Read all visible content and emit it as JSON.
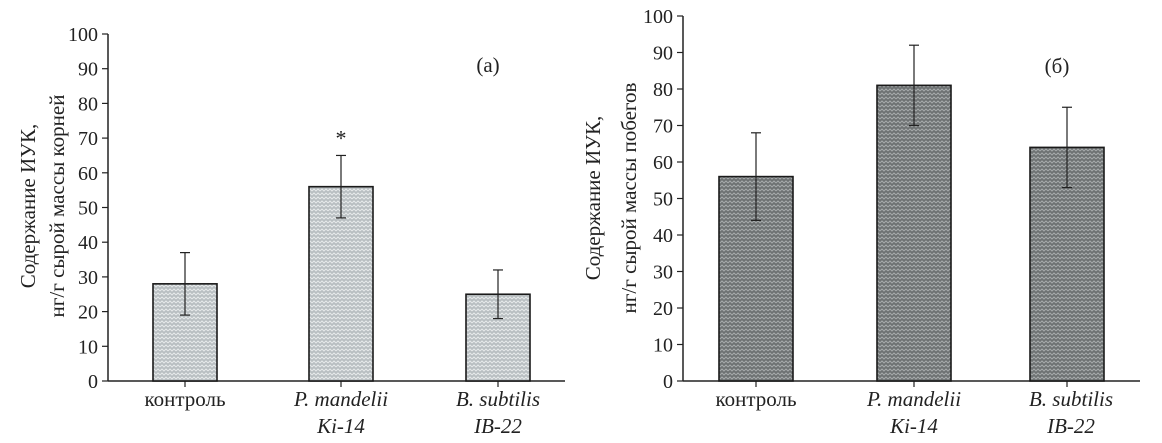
{
  "chart_data": [
    {
      "type": "bar",
      "panel_label": "(а)",
      "ylabel_lines": [
        "Содержание ИУК,",
        "нг/г сырой массы корней"
      ],
      "ylim": [
        0,
        100
      ],
      "yticks": [
        0,
        10,
        20,
        30,
        40,
        50,
        60,
        70,
        80,
        90,
        100
      ],
      "categories": [
        {
          "lines": [
            "контроль"
          ],
          "italic": false
        },
        {
          "lines": [
            "P. mandelii",
            "Ki-14"
          ],
          "italic": true
        },
        {
          "lines": [
            "B. subtilis",
            "IB-22"
          ],
          "italic": true
        }
      ],
      "values": [
        28,
        56,
        25
      ],
      "error_upper": [
        37,
        65,
        32
      ],
      "error_lower": [
        19,
        47,
        18
      ],
      "annotations": [
        "",
        "*",
        ""
      ],
      "bar_fill": "#b8bec1",
      "grid": false
    },
    {
      "type": "bar",
      "panel_label": "(б)",
      "ylabel_lines": [
        "Содержание ИУК,",
        "нг/г сырой массы побегов"
      ],
      "ylim": [
        0,
        100
      ],
      "yticks": [
        0,
        10,
        20,
        30,
        40,
        50,
        60,
        70,
        80,
        90,
        100
      ],
      "categories": [
        {
          "lines": [
            "контроль"
          ],
          "italic": false
        },
        {
          "lines": [
            "P. mandelii",
            "Ki-14"
          ],
          "italic": true
        },
        {
          "lines": [
            "B. subtilis",
            "IB-22"
          ],
          "italic": true
        }
      ],
      "values": [
        56,
        81,
        64
      ],
      "error_upper": [
        68,
        92,
        75
      ],
      "error_lower": [
        44,
        70,
        53
      ],
      "annotations": [
        "",
        "",
        ""
      ],
      "bar_fill": "#737778",
      "grid": false
    }
  ]
}
